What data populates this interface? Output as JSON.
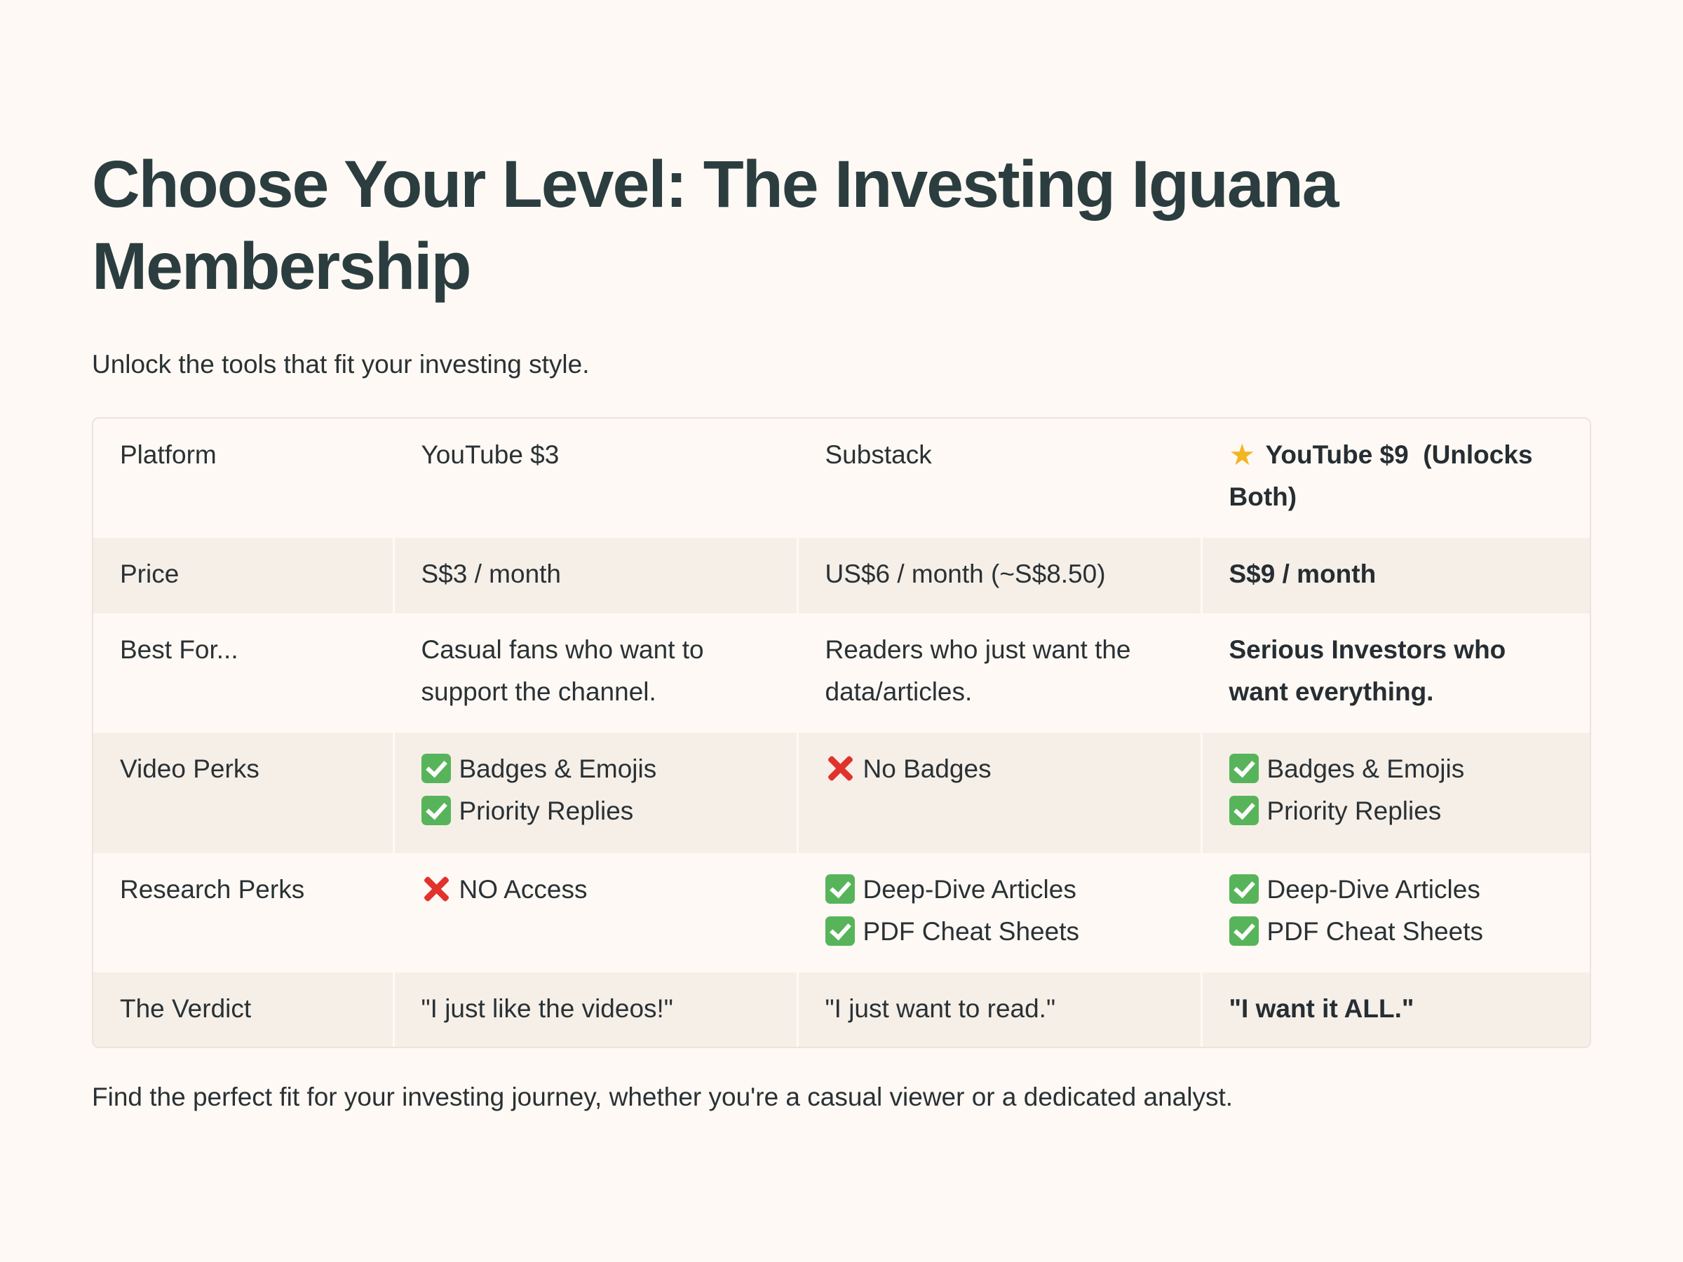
{
  "page": {
    "title": "Choose Your Level: The Investing Iguana Membership",
    "subtitle": "Unlock the tools that fit your investing style.",
    "footer": "Find the perfect fit for your investing journey, whether you're a casual viewer or a dedicated analyst."
  },
  "table": {
    "header": {
      "label": "Platform",
      "youtube3": "YouTube $3",
      "substack": "Substack",
      "youtube9_icon": "star-icon",
      "youtube9": "YouTube $9  (Unlocks Both)"
    },
    "price": {
      "label": "Price",
      "youtube3": "S$3 / month",
      "substack": "US$6 / month (~S$8.50)",
      "youtube9": "S$9 / month"
    },
    "best_for": {
      "label": "Best For...",
      "youtube3": "Casual fans who want to support the channel.",
      "substack": "Readers who just want the data/articles.",
      "youtube9": "Serious Investors who want everything."
    },
    "video_perks": {
      "label": "Video Perks",
      "youtube3": [
        {
          "icon": "check-icon",
          "text": "Badges & Emojis"
        },
        {
          "icon": "check-icon",
          "text": "Priority Replies"
        }
      ],
      "substack": [
        {
          "icon": "cross-icon",
          "text": "No Badges"
        }
      ],
      "youtube9": [
        {
          "icon": "check-icon",
          "text": "Badges & Emojis"
        },
        {
          "icon": "check-icon",
          "text": "Priority Replies"
        }
      ]
    },
    "research_perks": {
      "label": "Research Perks",
      "youtube3": [
        {
          "icon": "cross-icon",
          "text": "NO Access"
        }
      ],
      "substack": [
        {
          "icon": "check-icon",
          "text": "Deep-Dive Articles"
        },
        {
          "icon": "check-icon",
          "text": "PDF Cheat Sheets"
        }
      ],
      "youtube9": [
        {
          "icon": "check-icon",
          "text": "Deep-Dive Articles"
        },
        {
          "icon": "check-icon",
          "text": "PDF Cheat Sheets"
        }
      ]
    },
    "verdict": {
      "label": "The Verdict",
      "youtube3": "\"I just like the videos!\"",
      "substack": "\"I just want to read.\"",
      "youtube9": "\"I want it ALL.\""
    }
  },
  "colors": {
    "background": "#fef9f4",
    "row_shade": "#f5efe8",
    "heading": "#2b3d3f",
    "check": "#58b45a",
    "cross": "#e0332c",
    "star": "#f2b523"
  }
}
